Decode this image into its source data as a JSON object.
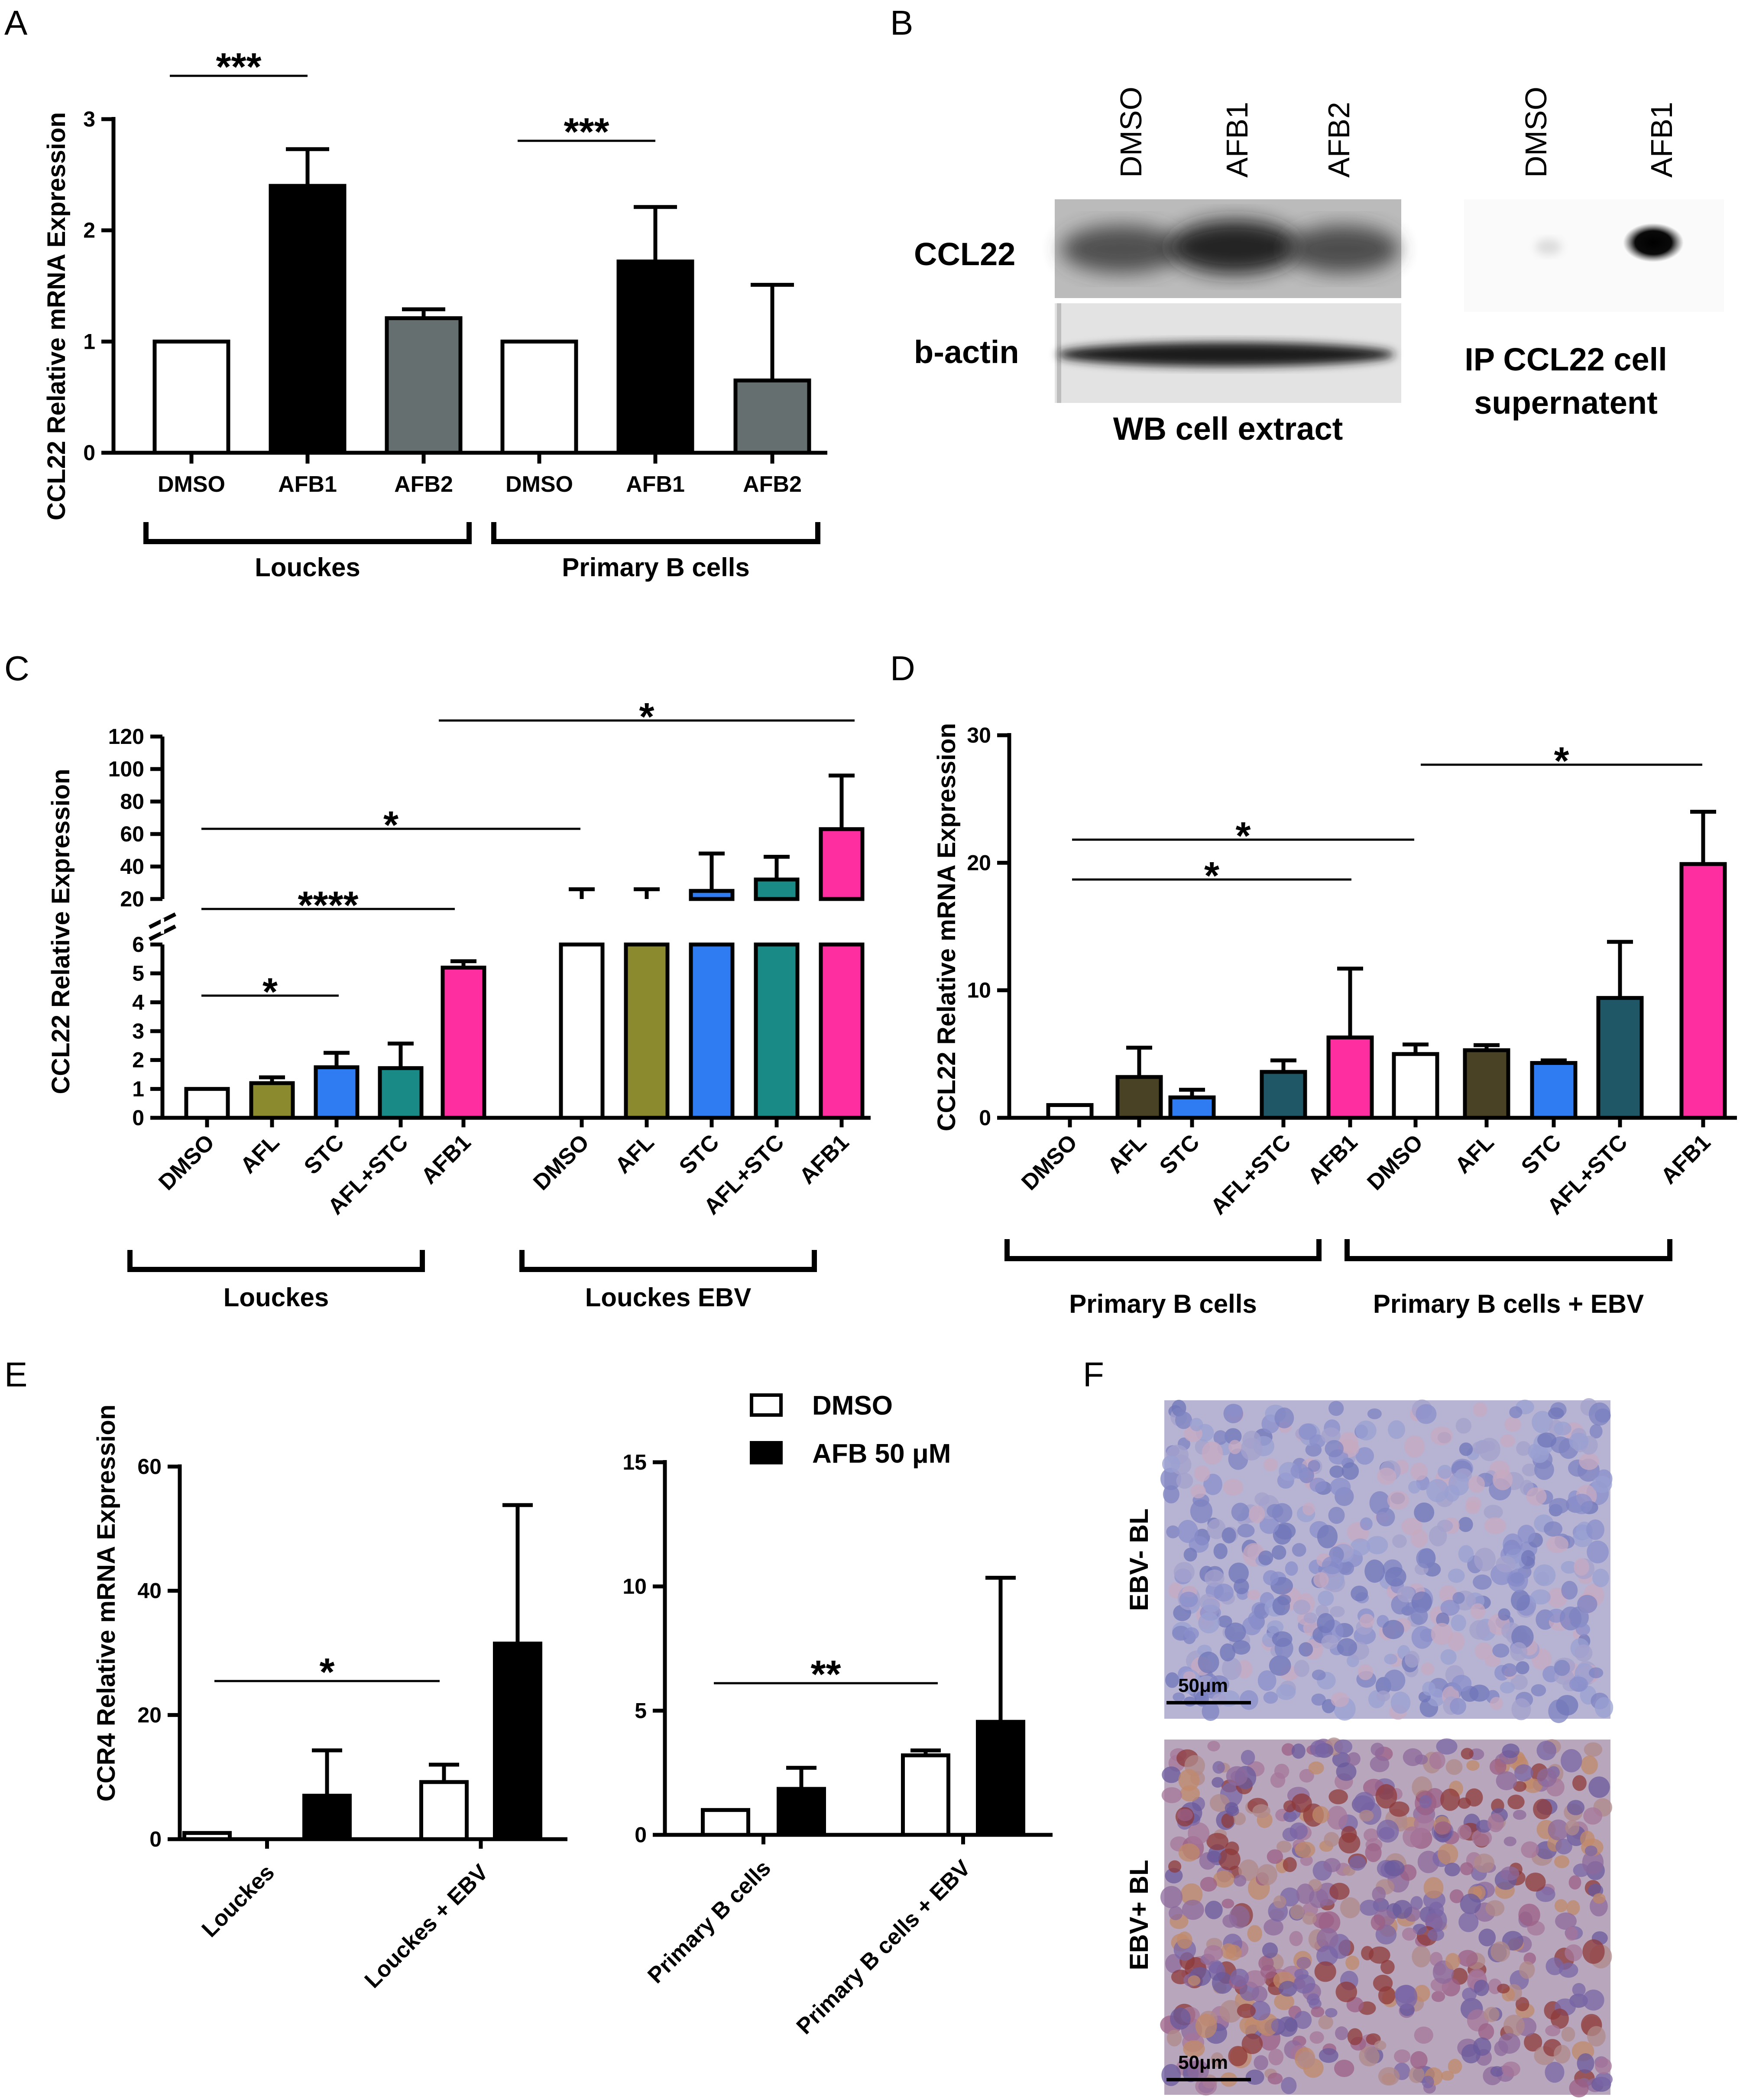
{
  "panel_labels": {
    "A": "A",
    "B": "B",
    "C": "C",
    "D": "D",
    "E": "E",
    "F": "F"
  },
  "colors": {
    "DMSO": "#ffffff",
    "AFB1_A": "#000000",
    "AFB2": "#656f70",
    "AFL_C": "#8b8a2e",
    "AFL_D": "#4a4224",
    "STC": "#2f7cf2",
    "AFL_STC_C": "#1a8a86",
    "AFL_STC_D": "#1f5767",
    "AFB1": "#ff2ea0",
    "AFB_50": "#000000"
  },
  "panelB": {
    "wb_lanes": [
      "DMSO",
      "AFB1",
      "AFB2"
    ],
    "ip_lanes": [
      "DMSO",
      "AFB1"
    ],
    "row_labels": [
      "CCL22",
      "b-actin"
    ],
    "wb_caption": "WB cell extract",
    "ip_caption_line1": "IP CCL22 cell",
    "ip_caption_line2": "supernatent"
  },
  "panelF": {
    "top_label": "EBV- BL",
    "bottom_label": "EBV+ BL",
    "scale_top": "50μm",
    "scale_bottom": "50μm"
  },
  "chart_data": [
    {
      "panel": "A",
      "type": "bar",
      "ylabel": "CCL22 Relative mRNA Expression",
      "ylim": [
        0,
        3
      ],
      "yticks": [
        0,
        1,
        2,
        3
      ],
      "categories": [
        "DMSO",
        "AFB1",
        "AFB2",
        "DMSO",
        "AFB1",
        "AFB2"
      ],
      "values": [
        1.0,
        2.4,
        1.21,
        1.0,
        1.72,
        0.65
      ],
      "errors": [
        0,
        0.33,
        0.08,
        0,
        0.49,
        0.86
      ],
      "color_keys": [
        "DMSO",
        "AFB1_A",
        "AFB2",
        "DMSO",
        "AFB1_A",
        "AFB2"
      ],
      "groups": [
        {
          "label": "Louckes",
          "from": 0,
          "to": 2
        },
        {
          "label": "Primary B cells",
          "from": 3,
          "to": 5
        }
      ],
      "significance": [
        {
          "label": "***",
          "from": 0,
          "to": 1
        },
        {
          "label": "***",
          "from": 3,
          "to": 4
        }
      ]
    },
    {
      "panel": "C",
      "type": "bar",
      "ylabel": "CCL22 Relative Expression",
      "axis_break": {
        "lower": [
          0,
          6
        ],
        "upper": [
          20,
          120
        ]
      },
      "yticks_lower": [
        0,
        1,
        2,
        3,
        4,
        5,
        6
      ],
      "yticks_upper": [
        20,
        40,
        60,
        80,
        100,
        120
      ],
      "categories": [
        "DMSO",
        "AFL",
        "STC",
        "AFL+STC",
        "AFB1",
        "DMSO",
        "AFL",
        "STC",
        "AFL+STC",
        "AFB1"
      ],
      "values": [
        1.0,
        1.2,
        1.75,
        1.72,
        5.2,
        11,
        16,
        25,
        32,
        63
      ],
      "errors": [
        0,
        0.2,
        0.5,
        0.85,
        0.22,
        15,
        10,
        23,
        14,
        33
      ],
      "color_keys": [
        "DMSO",
        "AFL_C",
        "STC",
        "AFL_STC_C",
        "AFB1",
        "DMSO",
        "AFL_C",
        "STC",
        "AFL_STC_C",
        "AFB1"
      ],
      "groups": [
        {
          "label": "Louckes",
          "from": 0,
          "to": 4
        },
        {
          "label": "Louckes EBV",
          "from": 5,
          "to": 9
        }
      ],
      "significance": [
        {
          "label": "*",
          "from": 0,
          "to": 2
        },
        {
          "label": "****",
          "from": 0,
          "to": 4
        },
        {
          "label": "*",
          "from": 0,
          "to": 5
        },
        {
          "label": "*",
          "from": 4,
          "to": 9
        }
      ]
    },
    {
      "panel": "D",
      "type": "bar",
      "ylabel": "CCL22 Relative mRNA Expression",
      "ylim": [
        0,
        30
      ],
      "yticks": [
        0,
        10,
        20,
        30
      ],
      "categories": [
        "DMSO",
        "AFL",
        "STC",
        "AFL+STC",
        "AFB1",
        "DMSO",
        "AFL",
        "STC",
        "AFL+STC",
        "AFB1"
      ],
      "values": [
        1.0,
        3.2,
        1.6,
        3.6,
        6.3,
        5.0,
        5.3,
        4.3,
        9.4,
        19.9
      ],
      "errors": [
        0,
        2.3,
        0.6,
        0.9,
        5.4,
        0.75,
        0.4,
        0.2,
        4.4,
        4.1
      ],
      "color_keys": [
        "DMSO",
        "AFL_D",
        "STC",
        "AFL_STC_D",
        "AFB1",
        "DMSO",
        "AFL_D",
        "STC",
        "AFL_STC_D",
        "AFB1"
      ],
      "groups": [
        {
          "label": "Primary B cells",
          "from": 0,
          "to": 4
        },
        {
          "label": "Primary B cells + EBV",
          "from": 5,
          "to": 9
        }
      ],
      "significance": [
        {
          "label": "*",
          "from": 0,
          "to": 4
        },
        {
          "label": "*",
          "from": 0,
          "to": 5
        },
        {
          "label": "*",
          "from": 5,
          "to": 9
        }
      ]
    },
    {
      "panel": "E1",
      "type": "bar",
      "ylabel": "CCR4 Relative mRNA Expression",
      "ylim": [
        0,
        60
      ],
      "yticks": [
        0,
        20,
        40,
        60
      ],
      "categories": [
        "Louckes",
        "Louckes + EBV"
      ],
      "series": [
        {
          "name": "DMSO",
          "values": [
            1.0,
            9.2
          ],
          "errors": [
            0,
            2.8
          ]
        },
        {
          "name": "AFB 50 μM",
          "values": [
            7.0,
            31.5
          ],
          "errors": [
            7.3,
            22.3
          ]
        }
      ],
      "significance": [
        {
          "label": "*",
          "from": 0,
          "to": 2
        }
      ]
    },
    {
      "panel": "E2",
      "type": "bar",
      "ylim": [
        0,
        15
      ],
      "yticks": [
        0,
        5,
        10,
        15
      ],
      "categories": [
        "Primary B cells",
        "Primary B cells + EBV"
      ],
      "series": [
        {
          "name": "DMSO",
          "values": [
            1.0,
            3.2
          ],
          "errors": [
            0,
            0.2
          ]
        },
        {
          "name": "AFB 50 μM",
          "values": [
            1.85,
            4.55
          ],
          "errors": [
            0.85,
            5.8
          ]
        }
      ],
      "legend": [
        "DMSO",
        "AFB 50 μM"
      ],
      "significance": [
        {
          "label": "**",
          "from": 0,
          "to": 2
        }
      ]
    }
  ]
}
